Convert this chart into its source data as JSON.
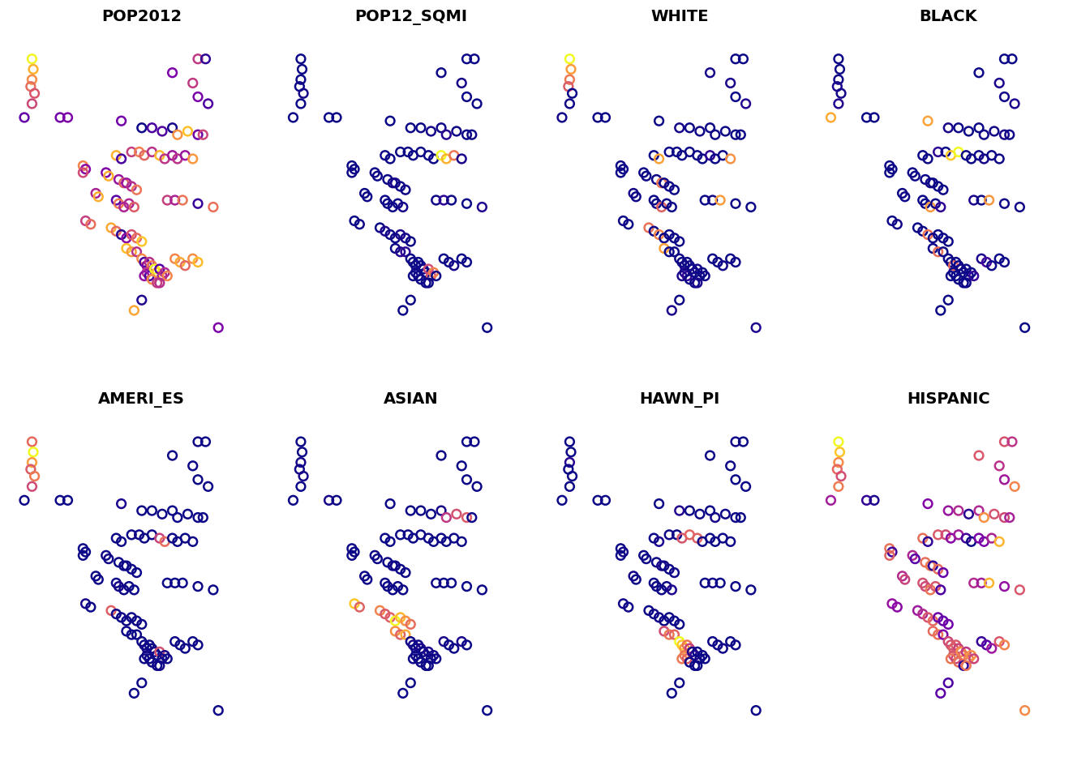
{
  "titles": [
    "POP2012",
    "POP12_SQMI",
    "WHITE",
    "BLACK",
    "AMERI_ES",
    "ASIAN",
    "HAWN_PI",
    "HISPANIC"
  ],
  "figsize": [
    13.44,
    9.6
  ],
  "dpi": 100,
  "background_color": "#ffffff",
  "title_fontsize": 14,
  "title_fontweight": "bold",
  "marker_size": 60,
  "marker_linewidth": 1.8,
  "colormap": "plasma"
}
